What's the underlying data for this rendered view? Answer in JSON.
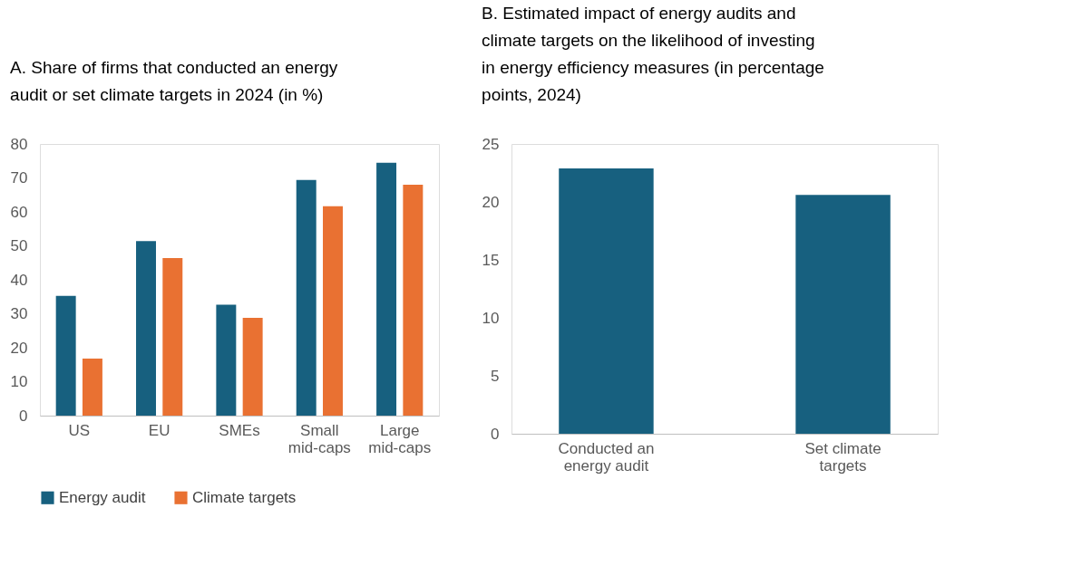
{
  "chart_data": [
    {
      "type": "bar",
      "title": "A.   Share of firms that conducted an energy audit or set climate targets in 2024 (in %)",
      "categories": [
        "US",
        "EU",
        "SMEs",
        "Small mid-caps",
        "Large mid-caps"
      ],
      "series": [
        {
          "name": "Energy audit",
          "color": "#17607f",
          "values": [
            35.3,
            51.4,
            32.7,
            69.4,
            74.5
          ]
        },
        {
          "name": "Climate targets",
          "color": "#e97132",
          "values": [
            16.8,
            46.4,
            28.8,
            61.7,
            68
          ]
        }
      ],
      "ylim": [
        0,
        80
      ],
      "yticks": [
        0,
        10,
        20,
        30,
        40,
        50,
        60,
        70,
        80
      ],
      "grid": false,
      "legend": "bottom"
    },
    {
      "type": "bar",
      "title": "B.   Estimated impact of energy audits and climate targets on the likelihood of investing in energy efficiency measures (in percentage points, 2024)",
      "categories": [
        "Conducted an energy audit",
        "Set climate targets"
      ],
      "values": [
        22.9,
        20.6
      ],
      "colors": [
        "#17607f",
        "#17607f"
      ],
      "ylim": [
        0,
        25
      ],
      "yticks": [
        0,
        5,
        10,
        15,
        20,
        25
      ],
      "grid": false
    }
  ]
}
